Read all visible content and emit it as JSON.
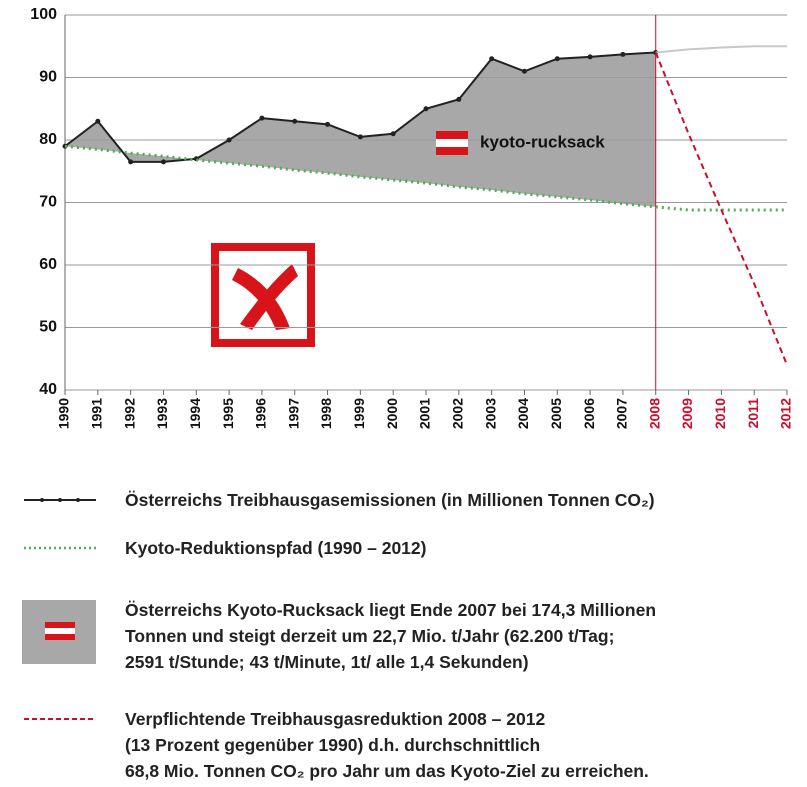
{
  "chart_data": {
    "type": "line",
    "categories": [
      "1990",
      "1991",
      "1992",
      "1993",
      "1994",
      "1995",
      "1996",
      "1997",
      "1998",
      "1999",
      "2000",
      "2001",
      "2002",
      "2003",
      "2004",
      "2005",
      "2006",
      "2007",
      "2008",
      "2009",
      "2010",
      "2011",
      "2012"
    ],
    "category_colors": [
      "#111",
      "#111",
      "#111",
      "#111",
      "#111",
      "#111",
      "#111",
      "#111",
      "#111",
      "#111",
      "#111",
      "#111",
      "#111",
      "#111",
      "#111",
      "#111",
      "#111",
      "#111",
      "#c8102e",
      "#c8102e",
      "#c8102e",
      "#c8102e",
      "#c8102e"
    ],
    "ylim": [
      40,
      100
    ],
    "yticks": [
      40,
      50,
      60,
      70,
      80,
      90,
      100
    ],
    "grid": true,
    "area_color": "#a8a8a8",
    "annotation": "kyoto-rucksack",
    "series": [
      {
        "color": "#222222",
        "style": "solid",
        "markers": true,
        "values": [
          79,
          83,
          76.5,
          76.5,
          77,
          80,
          83.5,
          83,
          82.5,
          80.5,
          81,
          85,
          86.5,
          93,
          91,
          93,
          93.3,
          93.7,
          94,
          null,
          null,
          null,
          null
        ]
      },
      {
        "color": "#4caf50",
        "style": "dotted",
        "markers": false,
        "values": [
          79,
          78.5,
          77.9,
          77.4,
          76.8,
          76.3,
          75.8,
          75.2,
          74.7,
          74.1,
          73.6,
          73.1,
          72.5,
          72.0,
          71.4,
          70.9,
          70.4,
          69.8,
          69.3,
          68.8,
          68.8,
          68.8,
          68.8
        ]
      },
      {
        "color": "#c8c8c8",
        "style": "solid",
        "markers": false,
        "values": [
          null,
          null,
          null,
          null,
          null,
          null,
          null,
          null,
          null,
          null,
          null,
          null,
          null,
          null,
          null,
          null,
          null,
          null,
          94,
          94.5,
          94.8,
          95,
          95
        ]
      },
      {
        "color": "#c8102e",
        "style": "dashed",
        "markers": false,
        "values": [
          null,
          null,
          null,
          null,
          null,
          null,
          null,
          null,
          null,
          null,
          null,
          null,
          null,
          null,
          null,
          null,
          null,
          null,
          94,
          81,
          68.8,
          57,
          44
        ]
      }
    ],
    "legend": [
      {
        "lines": [
          "Österreichs Treibhausgasemissionen (in Millionen Tonnen CO₂)"
        ]
      },
      {
        "lines": [
          "Kyoto-Reduktionspfad (1990 – 2012)"
        ]
      },
      {
        "lines": [
          "Österreichs Kyoto-Rucksack liegt Ende 2007 bei 174,3 Millionen",
          "Tonnen und steigt derzeit um 22,7 Mio. t/Jahr (62.200 t/Tag;",
          "2591 t/Stunde; 43 t/Minute, 1t/ alle 1,4 Sekunden)"
        ]
      },
      {
        "lines": [
          "Verpflichtende Treibhausgasreduktion 2008 – 2012",
          "(13 Prozent gegenüber 1990) d.h. durchschnittlich",
          "68,8 Mio. Tonnen CO₂ pro Jahr um das Kyoto-Ziel zu erreichen."
        ]
      }
    ]
  }
}
